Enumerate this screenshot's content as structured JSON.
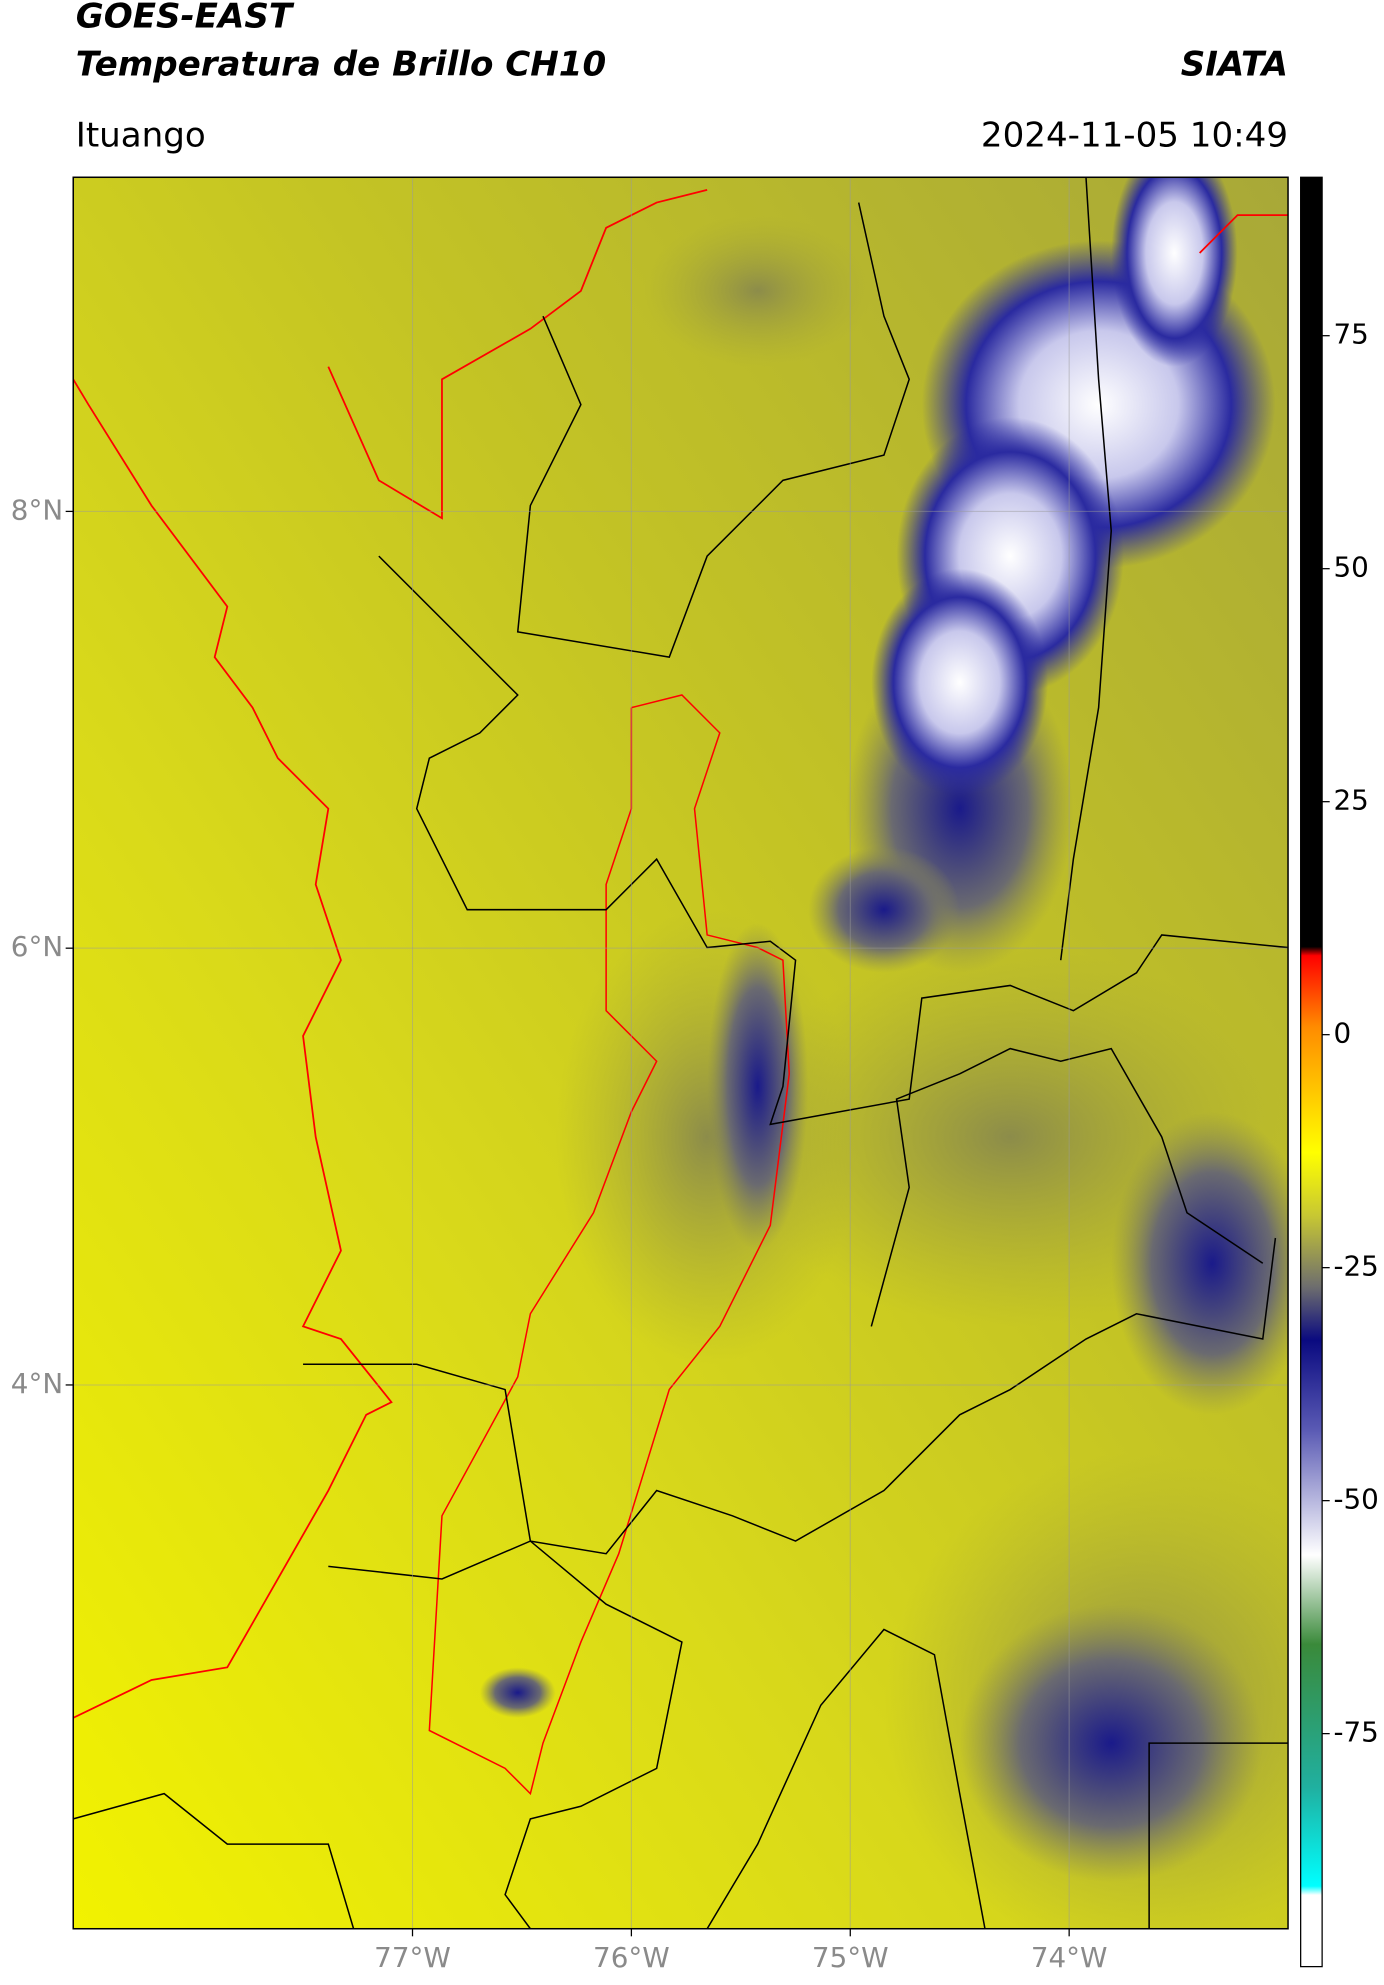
{
  "header": {
    "title": "GOES-EAST",
    "subtitle": "Temperatura de Brillo CH10",
    "source": "SIATA",
    "location": "Ituango",
    "timestamp": "2024-11-05 10:49"
  },
  "map": {
    "xlim": [
      -78.55,
      -73.0
    ],
    "ylim": [
      1.51,
      9.53
    ],
    "xticks": [
      {
        "value": -77,
        "label": "77°W"
      },
      {
        "value": -76,
        "label": "76°W"
      },
      {
        "value": -75,
        "label": "75°W"
      },
      {
        "value": -74,
        "label": "74°W"
      }
    ],
    "yticks": [
      {
        "value": 8,
        "label": "8°N"
      },
      {
        "value": 6,
        "label": "6°N"
      },
      {
        "value": 4,
        "label": "4°N"
      }
    ],
    "grid": true
  },
  "colorbar": {
    "lim": [
      -100,
      92
    ],
    "ticks": [
      75,
      50,
      25,
      0,
      -25,
      -50,
      -75
    ]
  }
}
